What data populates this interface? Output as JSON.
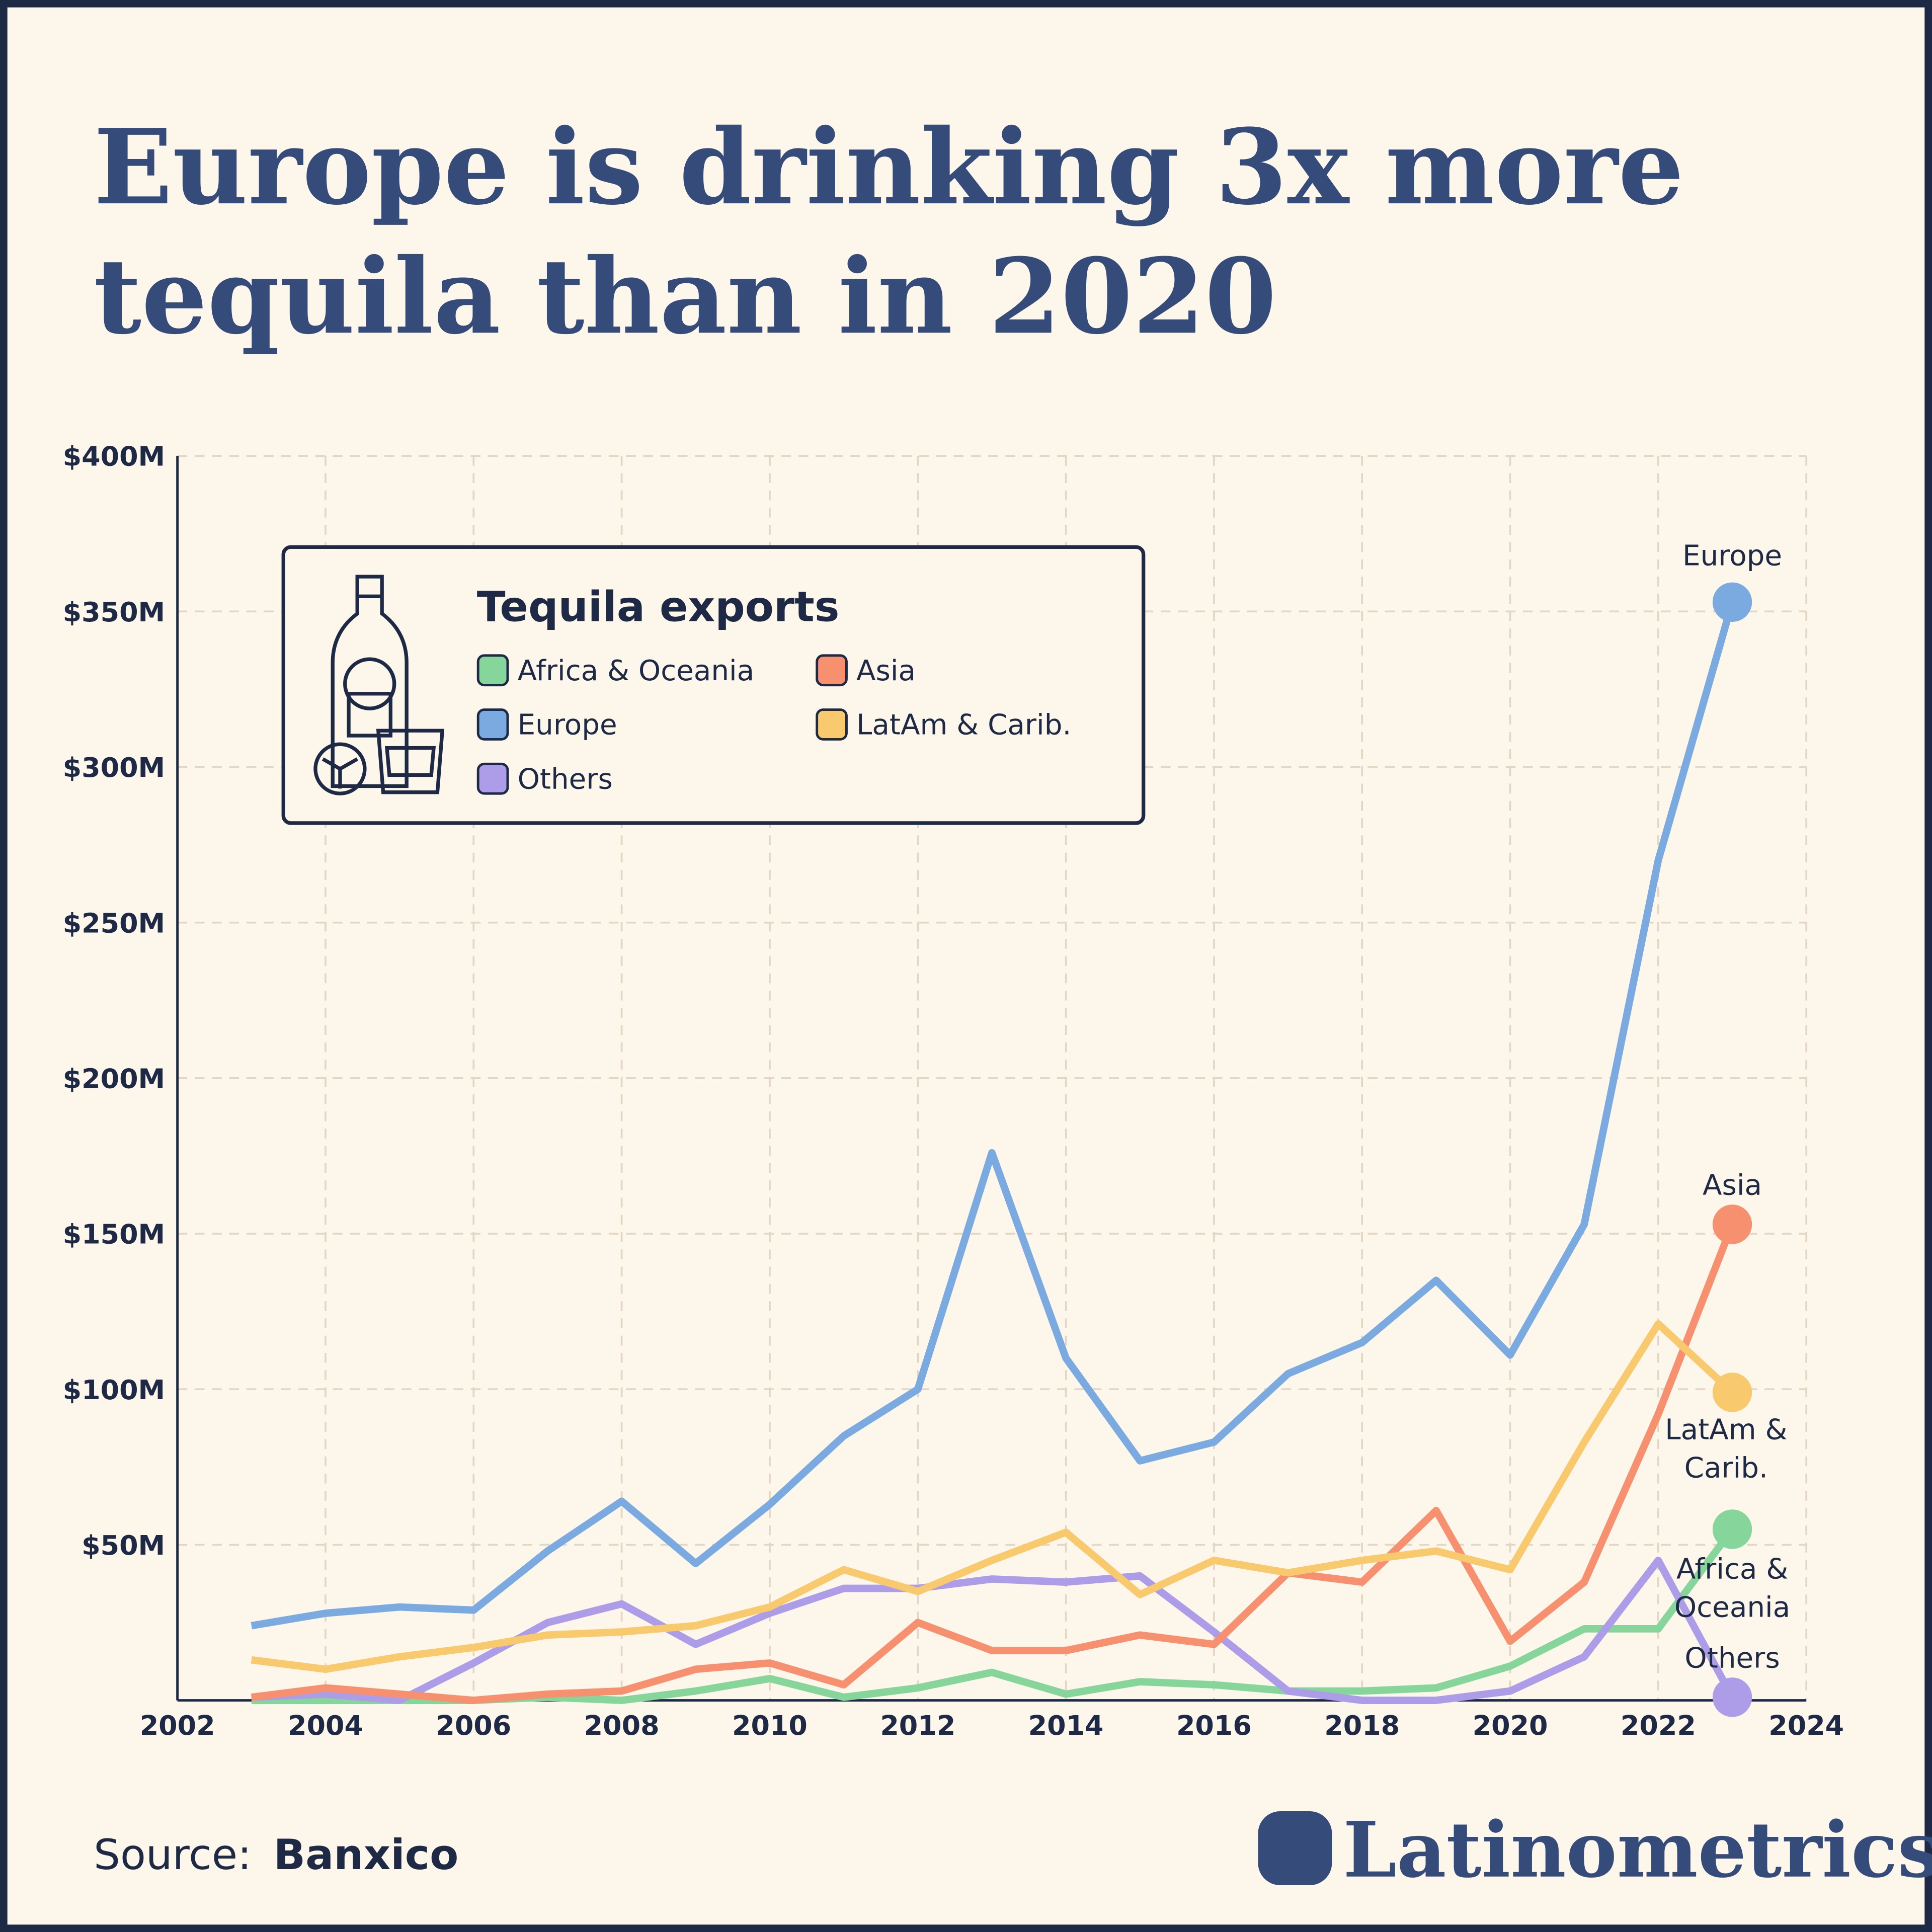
{
  "chart_data": {
    "type": "line",
    "title": [
      "Europe is drinking 3x more",
      "tequila than in 2020"
    ],
    "legend_title": "Tequila exports",
    "source_label": "Source:",
    "source": "Banxico",
    "brand": "Latinometrics",
    "x": [
      2003,
      2004,
      2005,
      2006,
      2007,
      2008,
      2009,
      2010,
      2011,
      2012,
      2013,
      2014,
      2015,
      2016,
      2017,
      2018,
      2019,
      2020,
      2021,
      2022,
      2023
    ],
    "xlim": [
      2002,
      2024
    ],
    "xticks": [
      2002,
      2004,
      2006,
      2008,
      2010,
      2012,
      2014,
      2016,
      2018,
      2020,
      2022,
      2024
    ],
    "ylim": [
      0,
      400
    ],
    "yticks": [
      {
        "value": 50,
        "label": "$50M"
      },
      {
        "value": 100,
        "label": "$100M"
      },
      {
        "value": 150,
        "label": "$150M"
      },
      {
        "value": 200,
        "label": "$200M"
      },
      {
        "value": 250,
        "label": "$250M"
      },
      {
        "value": 300,
        "label": "$300M"
      },
      {
        "value": 350,
        "label": "$350M"
      },
      {
        "value": 400,
        "label": "$400M"
      }
    ],
    "grid": true,
    "series": [
      {
        "name": "Africa & Oceania",
        "color": "#86d59a",
        "end_label": [
          "Africa &",
          "Oceania"
        ],
        "values": [
          0,
          0,
          0,
          0,
          1,
          0,
          3,
          7,
          1,
          4,
          9,
          2,
          6,
          5,
          3,
          3,
          4,
          11,
          23,
          23,
          55
        ]
      },
      {
        "name": "Asia",
        "color": "#f7906f",
        "end_label": [
          "Asia"
        ],
        "values": [
          1,
          4,
          2,
          0,
          2,
          3,
          10,
          12,
          5,
          25,
          16,
          16,
          21,
          18,
          41,
          38,
          61,
          19,
          38,
          92,
          153
        ]
      },
      {
        "name": "Europe",
        "color": "#7aaae0",
        "end_label": [
          "Europe"
        ],
        "values": [
          24,
          28,
          30,
          29,
          48,
          64,
          44,
          63,
          85,
          100,
          176,
          110,
          77,
          83,
          105,
          115,
          135,
          111,
          153,
          270,
          353
        ]
      },
      {
        "name": "LatAm & Carib.",
        "color": "#f9c96e",
        "end_label": [
          "LatAm &",
          "Carib."
        ],
        "values": [
          13,
          10,
          14,
          17,
          21,
          22,
          24,
          30,
          42,
          35,
          45,
          54,
          34,
          45,
          41,
          45,
          48,
          42,
          83,
          121,
          99
        ]
      },
      {
        "name": "Others",
        "color": "#ad9ce8",
        "end_label": [
          "Others"
        ],
        "values": [
          1,
          2,
          0,
          12,
          25,
          31,
          18,
          28,
          36,
          36,
          39,
          38,
          40,
          22,
          3,
          0,
          0,
          3,
          14,
          45,
          1
        ]
      }
    ]
  }
}
